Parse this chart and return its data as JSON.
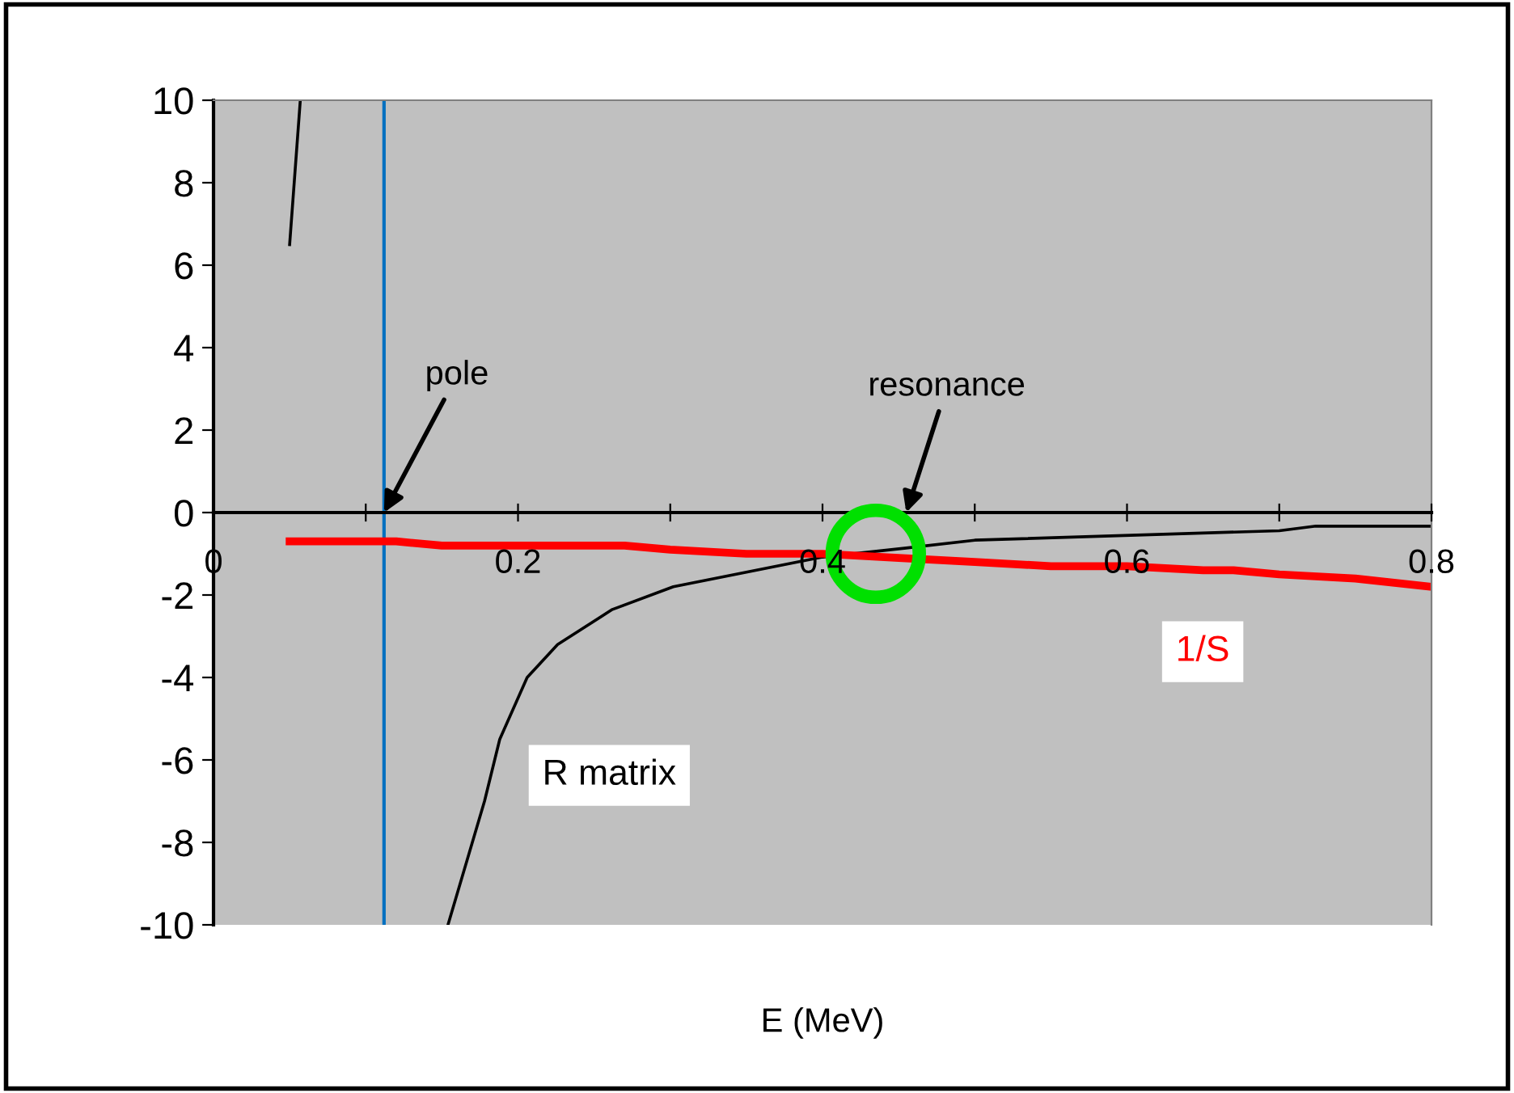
{
  "chart_data": {
    "type": "line",
    "xlabel": "E (MeV)",
    "xlim": [
      0,
      0.8
    ],
    "ylim": [
      -10,
      10
    ],
    "xticks": [
      0,
      {
        "value": 0.1,
        "label": null
      },
      0.2,
      {
        "value": 0.3,
        "label": null
      },
      0.4,
      {
        "value": 0.5,
        "label": null
      },
      0.6,
      {
        "value": 0.7,
        "label": null
      },
      0.8
    ],
    "yticks": [
      -10,
      -8,
      -6,
      -4,
      -2,
      0,
      2,
      4,
      6,
      8,
      10
    ],
    "grid": false,
    "series": [
      {
        "name": "R matrix",
        "color": "#000000",
        "x": [
          0.05,
          0.057,
          0.1,
          0.154,
          0.178,
          0.188,
          0.206,
          0.226,
          0.262,
          0.302,
          0.4,
          0.455,
          0.5,
          0.7,
          0.724,
          0.8
        ],
        "values": [
          6.5,
          10,
          null,
          -10,
          -7,
          -5.5,
          -4,
          -3.2,
          -2.35,
          -1.8,
          -1.08,
          -0.86,
          -0.67,
          -0.44,
          -0.33,
          -0.33
        ]
      },
      {
        "name": "1/S",
        "color": "#ff0000",
        "x": [
          0.05,
          0.1,
          0.12,
          0.15,
          0.2,
          0.25,
          0.27,
          0.3,
          0.35,
          0.4,
          0.45,
          0.5,
          0.55,
          0.6,
          0.65,
          0.67,
          0.7,
          0.75,
          0.8
        ],
        "values": [
          -0.7,
          -0.7,
          -0.7,
          -0.8,
          -0.8,
          -0.8,
          -0.8,
          -0.9,
          -1.0,
          -1.0,
          -1.1,
          -1.2,
          -1.3,
          -1.3,
          -1.4,
          -1.4,
          -1.5,
          -1.6,
          -1.8
        ]
      },
      {
        "type": "scatter",
        "color": "#00e000",
        "marker": "circle",
        "x": [
          0.435
        ],
        "values": [
          -1.0
        ]
      }
    ],
    "ref_lines": [
      {
        "axis": "x",
        "value": 0.112,
        "color": "#0070c0"
      }
    ],
    "annotations": [
      {
        "text": "pole",
        "x": 0.112,
        "y": 0
      },
      {
        "text": "resonance",
        "x": 0.455,
        "y": 0
      }
    ]
  }
}
